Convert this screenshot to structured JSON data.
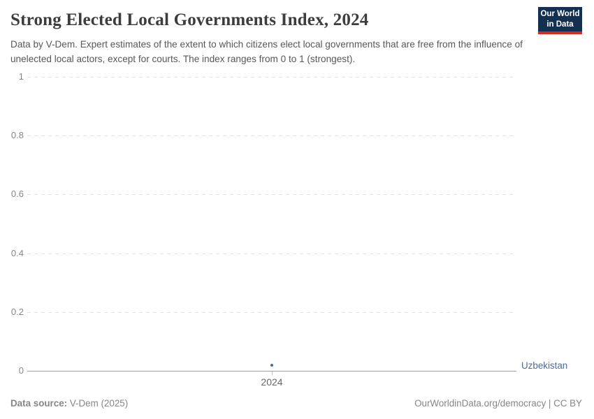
{
  "header": {
    "title": "Strong Elected Local Governments Index, 2024",
    "subtitle": "Data by V-Dem. Expert estimates of the extent to which citizens elect local governments that are free from the influence of unelected local actors, except for courts. The index ranges from 0 to 1 (strongest).",
    "logo": {
      "line1": "Our World",
      "line2": "in Data",
      "bg_color": "#133050",
      "accent_color": "#d42b22"
    }
  },
  "chart_data": {
    "type": "scatter",
    "title": "Strong Elected Local Governments Index, 2024",
    "x": [
      2024
    ],
    "x_tick_labels": [
      "2024"
    ],
    "series": [
      {
        "name": "Uzbekistan",
        "values": [
          0.02
        ],
        "color": "#4c6a9c"
      }
    ],
    "xlabel": "",
    "ylabel": "",
    "ylim": [
      0,
      1
    ],
    "y_ticks": [
      0,
      0.2,
      0.4,
      0.6,
      0.8,
      1
    ],
    "grid": "horizontal-dashed",
    "gridline_color": "#e2e2e2",
    "axis_color": "#9c9c9c",
    "legend_position": "right-of-plot"
  },
  "footer": {
    "source_label": "Data source:",
    "source_value": "V-Dem (2025)",
    "credit": "OurWorldinData.org/democracy | CC BY"
  }
}
